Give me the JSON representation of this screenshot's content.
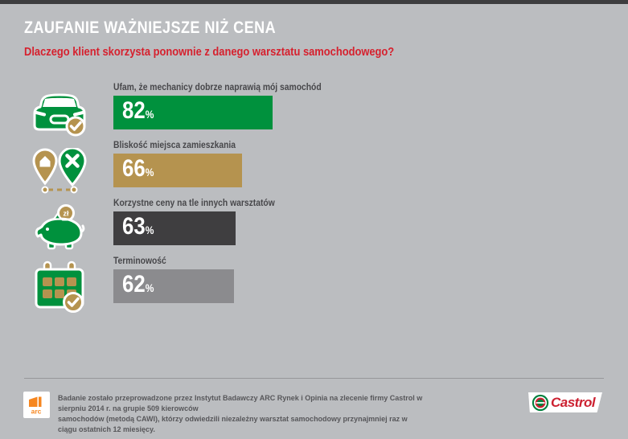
{
  "page": {
    "background": "#bbbdc0",
    "accent_red": "#d6212e"
  },
  "header": {
    "title": "ZAUFANIE WAŻNIEJSZE NIŻ CENA",
    "subtitle": "Dlaczego klient skorzysta ponownie z danego warsztatu samochodowego?"
  },
  "chart_data": {
    "type": "bar",
    "orientation": "horizontal",
    "unit": "%",
    "categories": [
      "Ufam, że mechanicy dobrze naprawią mój samochód",
      "Bliskość miejsca zamieszkania",
      "Korzystne ceny na tle innych warsztatów",
      "Terminowość"
    ],
    "values": [
      82,
      66,
      63,
      62
    ],
    "bar_colors": [
      "#00913d",
      "#b5934f",
      "#3f3e40",
      "#8b8b8e"
    ],
    "icons": [
      "car-check-icon",
      "location-pins-icon",
      "piggy-bank-icon",
      "calendar-check-icon"
    ],
    "xlim": [
      0,
      100
    ],
    "value_labels_inside_bars": true,
    "grid": false,
    "legend": false
  },
  "rows": [
    {
      "label": "Ufam, że mechanicy dobrze naprawią mój samochód",
      "value": 82,
      "unit": "%",
      "color": "#00913d",
      "icon": "car-check-icon"
    },
    {
      "label": "Bliskość miejsca zamieszkania",
      "value": 66,
      "unit": "%",
      "color": "#b5934f",
      "icon": "location-pins-icon"
    },
    {
      "label": "Korzystne ceny na tle innych warsztatów",
      "value": 63,
      "unit": "%",
      "color": "#3f3e40",
      "icon": "piggy-bank-icon"
    },
    {
      "label": "Terminowość",
      "value": 62,
      "unit": "%",
      "color": "#8b8b8e",
      "icon": "calendar-check-icon"
    }
  ],
  "icon_labels": {
    "coin": "zł"
  },
  "footer": {
    "line1": "Badanie zostało przeprowadzone przez Instytut Badawczy ARC Rynek i Opinia na zlecenie firmy Castrol w sierpniu 2014 r. na grupie 509 kierowców",
    "line2": "samochodów (metodą CAWI), którzy odwiedzili niezależny warsztat samochodowy przynajmniej raz w ciągu ostatnich 12 miesięcy.",
    "arc_logo": "arc",
    "castrol_logo": "Castrol"
  }
}
